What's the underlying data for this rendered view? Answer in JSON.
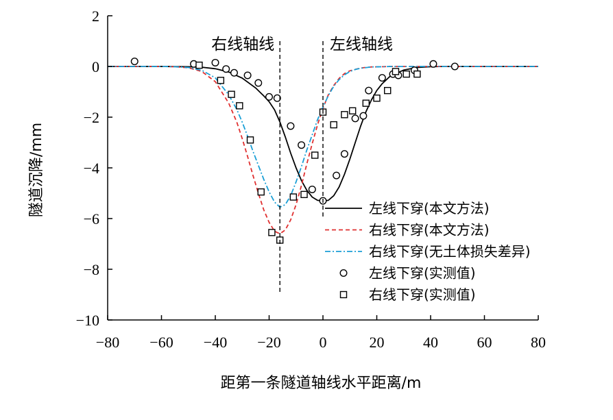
{
  "chart_data": {
    "type": "line",
    "xlabel": "距第一条隧道轴线水平距离/m",
    "ylabel": "隧道沉降/mm",
    "xlim": [
      -80,
      80
    ],
    "ylim": [
      -10,
      2
    ],
    "xticks": [
      -80,
      -60,
      -40,
      -20,
      0,
      20,
      40,
      60,
      80
    ],
    "xtick_labels": [
      "−80",
      "−60",
      "−40",
      "−20",
      "0",
      "20",
      "40",
      "60",
      "80"
    ],
    "yticks": [
      2,
      0,
      -2,
      -4,
      -6,
      -8,
      -10
    ],
    "ytick_labels": [
      "2",
      "0",
      "−2",
      "−4",
      "−6",
      "−8",
      "−10"
    ],
    "grid": false,
    "legend_position": "bottom-right",
    "annotations": [
      {
        "text": "右线轴线",
        "x": -16
      },
      {
        "text": "左线轴线",
        "x": 0
      }
    ],
    "reference_lines": [
      {
        "x": -16,
        "y_from": -9,
        "y_to": 1
      },
      {
        "x": 0,
        "y_from": -6,
        "y_to": 1
      }
    ],
    "series": [
      {
        "name": "左线下穿(本文方法)",
        "kind": "line",
        "style": "solid",
        "color": "#000000",
        "x": [
          -80,
          -70,
          -60,
          -50,
          -45,
          -40,
          -35,
          -30,
          -25,
          -22,
          -20,
          -18,
          -16,
          -14,
          -12,
          -10,
          -8,
          -6,
          -4,
          -2,
          0,
          2,
          4,
          6,
          8,
          10,
          12,
          14,
          16,
          18,
          20,
          22,
          25,
          30,
          35,
          40,
          45,
          50,
          60,
          70,
          80
        ],
        "y": [
          0,
          0,
          0,
          -0.01,
          -0.03,
          -0.09,
          -0.22,
          -0.46,
          -0.85,
          -1.16,
          -1.39,
          -1.71,
          -2.19,
          -2.78,
          -3.42,
          -4.0,
          -4.5,
          -4.88,
          -5.15,
          -5.28,
          -5.3,
          -5.28,
          -5.1,
          -4.75,
          -4.25,
          -3.65,
          -3.0,
          -2.35,
          -1.78,
          -1.32,
          -0.95,
          -0.68,
          -0.38,
          -0.14,
          -0.04,
          -0.01,
          0,
          0,
          0,
          0,
          0
        ]
      },
      {
        "name": "右线下穿(本文方法)",
        "kind": "line",
        "style": "dashed",
        "color": "#e03030",
        "x": [
          -80,
          -60,
          -55,
          -50,
          -45,
          -40,
          -35,
          -32,
          -30,
          -28,
          -26,
          -24,
          -22,
          -20,
          -18,
          -16,
          -14,
          -12,
          -10,
          -8,
          -6,
          -4,
          -2,
          0,
          2,
          4,
          6,
          8,
          10,
          14,
          18,
          22,
          25,
          30,
          35,
          40,
          50,
          60,
          80
        ],
        "y": [
          0,
          0,
          -0.01,
          -0.05,
          -0.2,
          -0.6,
          -1.45,
          -2.2,
          -2.85,
          -3.55,
          -4.3,
          -5.0,
          -5.65,
          -6.15,
          -6.5,
          -6.6,
          -6.45,
          -6.05,
          -5.45,
          -4.7,
          -3.85,
          -3.05,
          -2.3,
          -1.65,
          -1.12,
          -0.75,
          -0.47,
          -0.28,
          -0.17,
          -0.06,
          -0.02,
          -0.01,
          0,
          0,
          0,
          0,
          0,
          0,
          0
        ]
      },
      {
        "name": "右线下穿(无土体损失差异)",
        "kind": "line",
        "style": "dashdot",
        "color": "#1a9fd6",
        "x": [
          -80,
          -60,
          -55,
          -50,
          -45,
          -40,
          -35,
          -32,
          -30,
          -28,
          -26,
          -24,
          -22,
          -20,
          -18,
          -16,
          -14,
          -12,
          -10,
          -8,
          -6,
          -4,
          -2,
          0,
          2,
          4,
          6,
          8,
          10,
          12,
          14,
          18,
          22,
          25,
          30,
          35,
          40,
          50,
          60,
          80
        ],
        "y": [
          0,
          0,
          -0.01,
          -0.04,
          -0.15,
          -0.45,
          -1.12,
          -1.7,
          -2.2,
          -2.75,
          -3.35,
          -3.9,
          -4.45,
          -4.95,
          -5.35,
          -5.55,
          -5.45,
          -5.1,
          -4.55,
          -3.95,
          -3.3,
          -2.7,
          -2.1,
          -1.6,
          -1.15,
          -0.78,
          -0.52,
          -0.33,
          -0.2,
          -0.12,
          -0.07,
          -0.02,
          -0.01,
          0,
          0,
          0,
          0,
          0,
          0,
          0
        ]
      },
      {
        "name": "左线下穿(实测值)",
        "kind": "scatter",
        "marker": "circle",
        "color": "#000000",
        "x": [
          -70,
          -48,
          -40,
          -36,
          -33,
          -28,
          -24,
          -20,
          -17,
          -12,
          -8,
          -4,
          0,
          5,
          8,
          12,
          15,
          17,
          22,
          26,
          28,
          34,
          41,
          49
        ],
        "y": [
          0.2,
          0.1,
          0.15,
          -0.1,
          -0.25,
          -0.35,
          -0.65,
          -1.2,
          -1.25,
          -2.35,
          -3.1,
          -4.85,
          -5.3,
          -4.3,
          -3.45,
          -2.05,
          -1.95,
          -0.95,
          -0.45,
          -0.3,
          -0.35,
          -0.15,
          0.1,
          0
        ]
      },
      {
        "name": "右线下穿(实测值)",
        "kind": "scatter",
        "marker": "square",
        "color": "#000000",
        "x": [
          -46,
          -38,
          -34,
          -31,
          -27,
          -23,
          -19,
          -16,
          -11,
          -7,
          -3,
          0,
          4,
          8,
          11,
          16,
          20,
          24,
          27,
          31,
          35
        ],
        "y": [
          0.05,
          -0.55,
          -1.1,
          -1.55,
          -2.9,
          -4.95,
          -6.55,
          -6.85,
          -5.15,
          -5.05,
          -3.5,
          -1.8,
          -2.3,
          -1.9,
          -1.75,
          -1.45,
          -1.25,
          -0.95,
          -0.2,
          -0.3,
          -0.3
        ]
      }
    ]
  }
}
